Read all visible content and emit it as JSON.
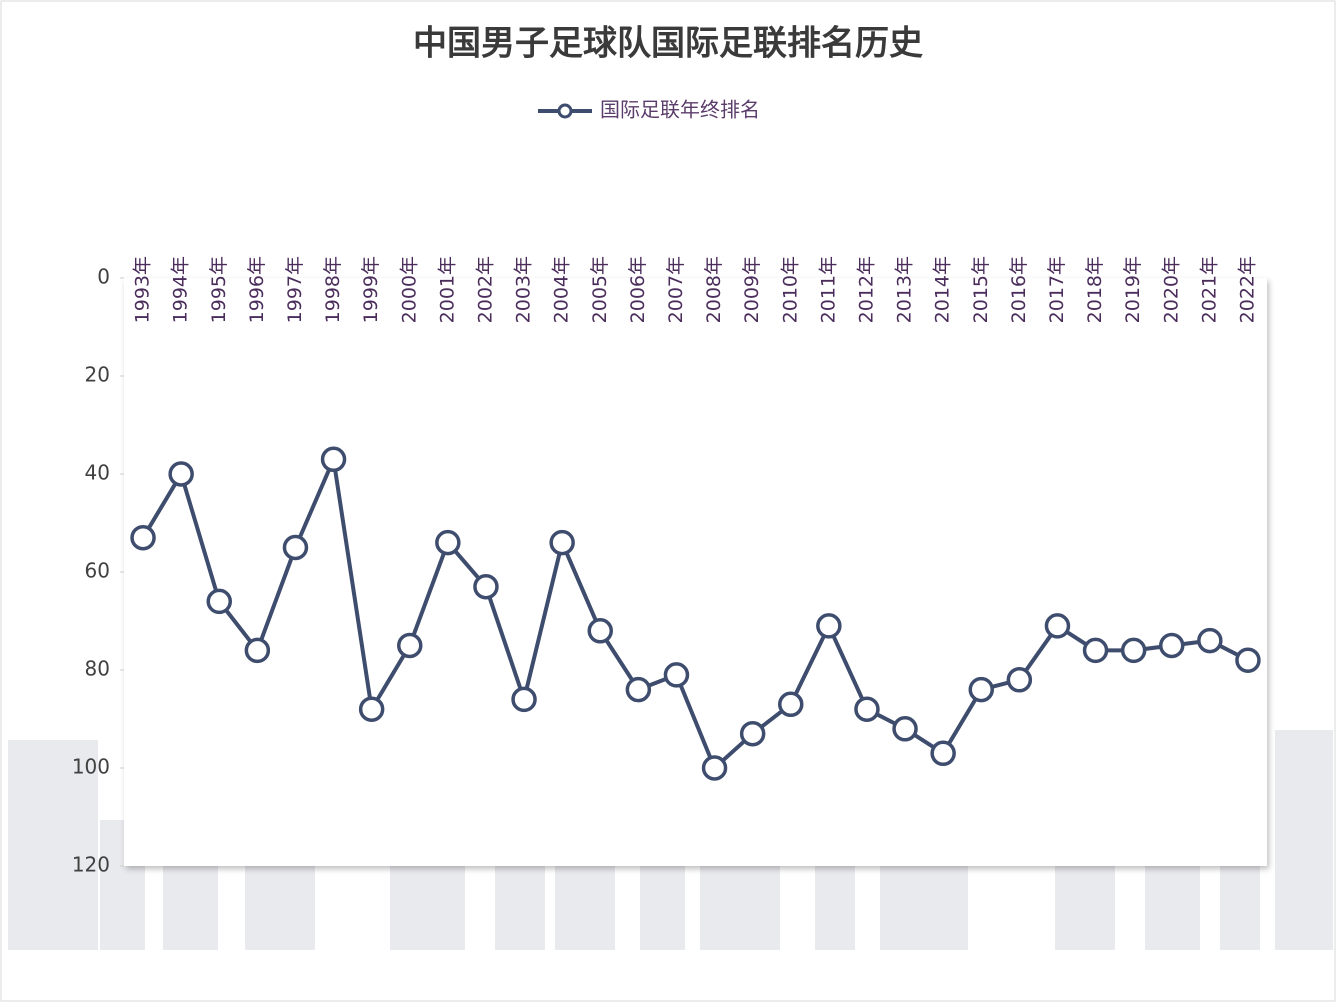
{
  "chart_data": {
    "type": "line",
    "title": "中国男子足球队国际足联排名历史",
    "categories": [
      "1993年",
      "1994年",
      "1995年",
      "1996年",
      "1997年",
      "1998年",
      "1999年",
      "2000年",
      "2001年",
      "2002年",
      "2003年",
      "2004年",
      "2005年",
      "2006年",
      "2007年",
      "2008年",
      "2009年",
      "2010年",
      "2011年",
      "2012年",
      "2013年",
      "2014年",
      "2015年",
      "2016年",
      "2017年",
      "2018年",
      "2019年",
      "2020年",
      "2021年",
      "2022年"
    ],
    "series": [
      {
        "name": "国际足联年终排名",
        "color": "#3e4c6d",
        "values": [
          53,
          40,
          66,
          76,
          55,
          37,
          88,
          75,
          54,
          63,
          86,
          54,
          72,
          84,
          81,
          100,
          93,
          87,
          71,
          88,
          92,
          97,
          84,
          82,
          71,
          76,
          76,
          75,
          74,
          78
        ]
      }
    ],
    "ylim": [
      0,
      120
    ],
    "yticks": [
      0,
      20,
      40,
      60,
      80,
      100,
      120
    ],
    "y_reversed": true,
    "legend": "top"
  }
}
